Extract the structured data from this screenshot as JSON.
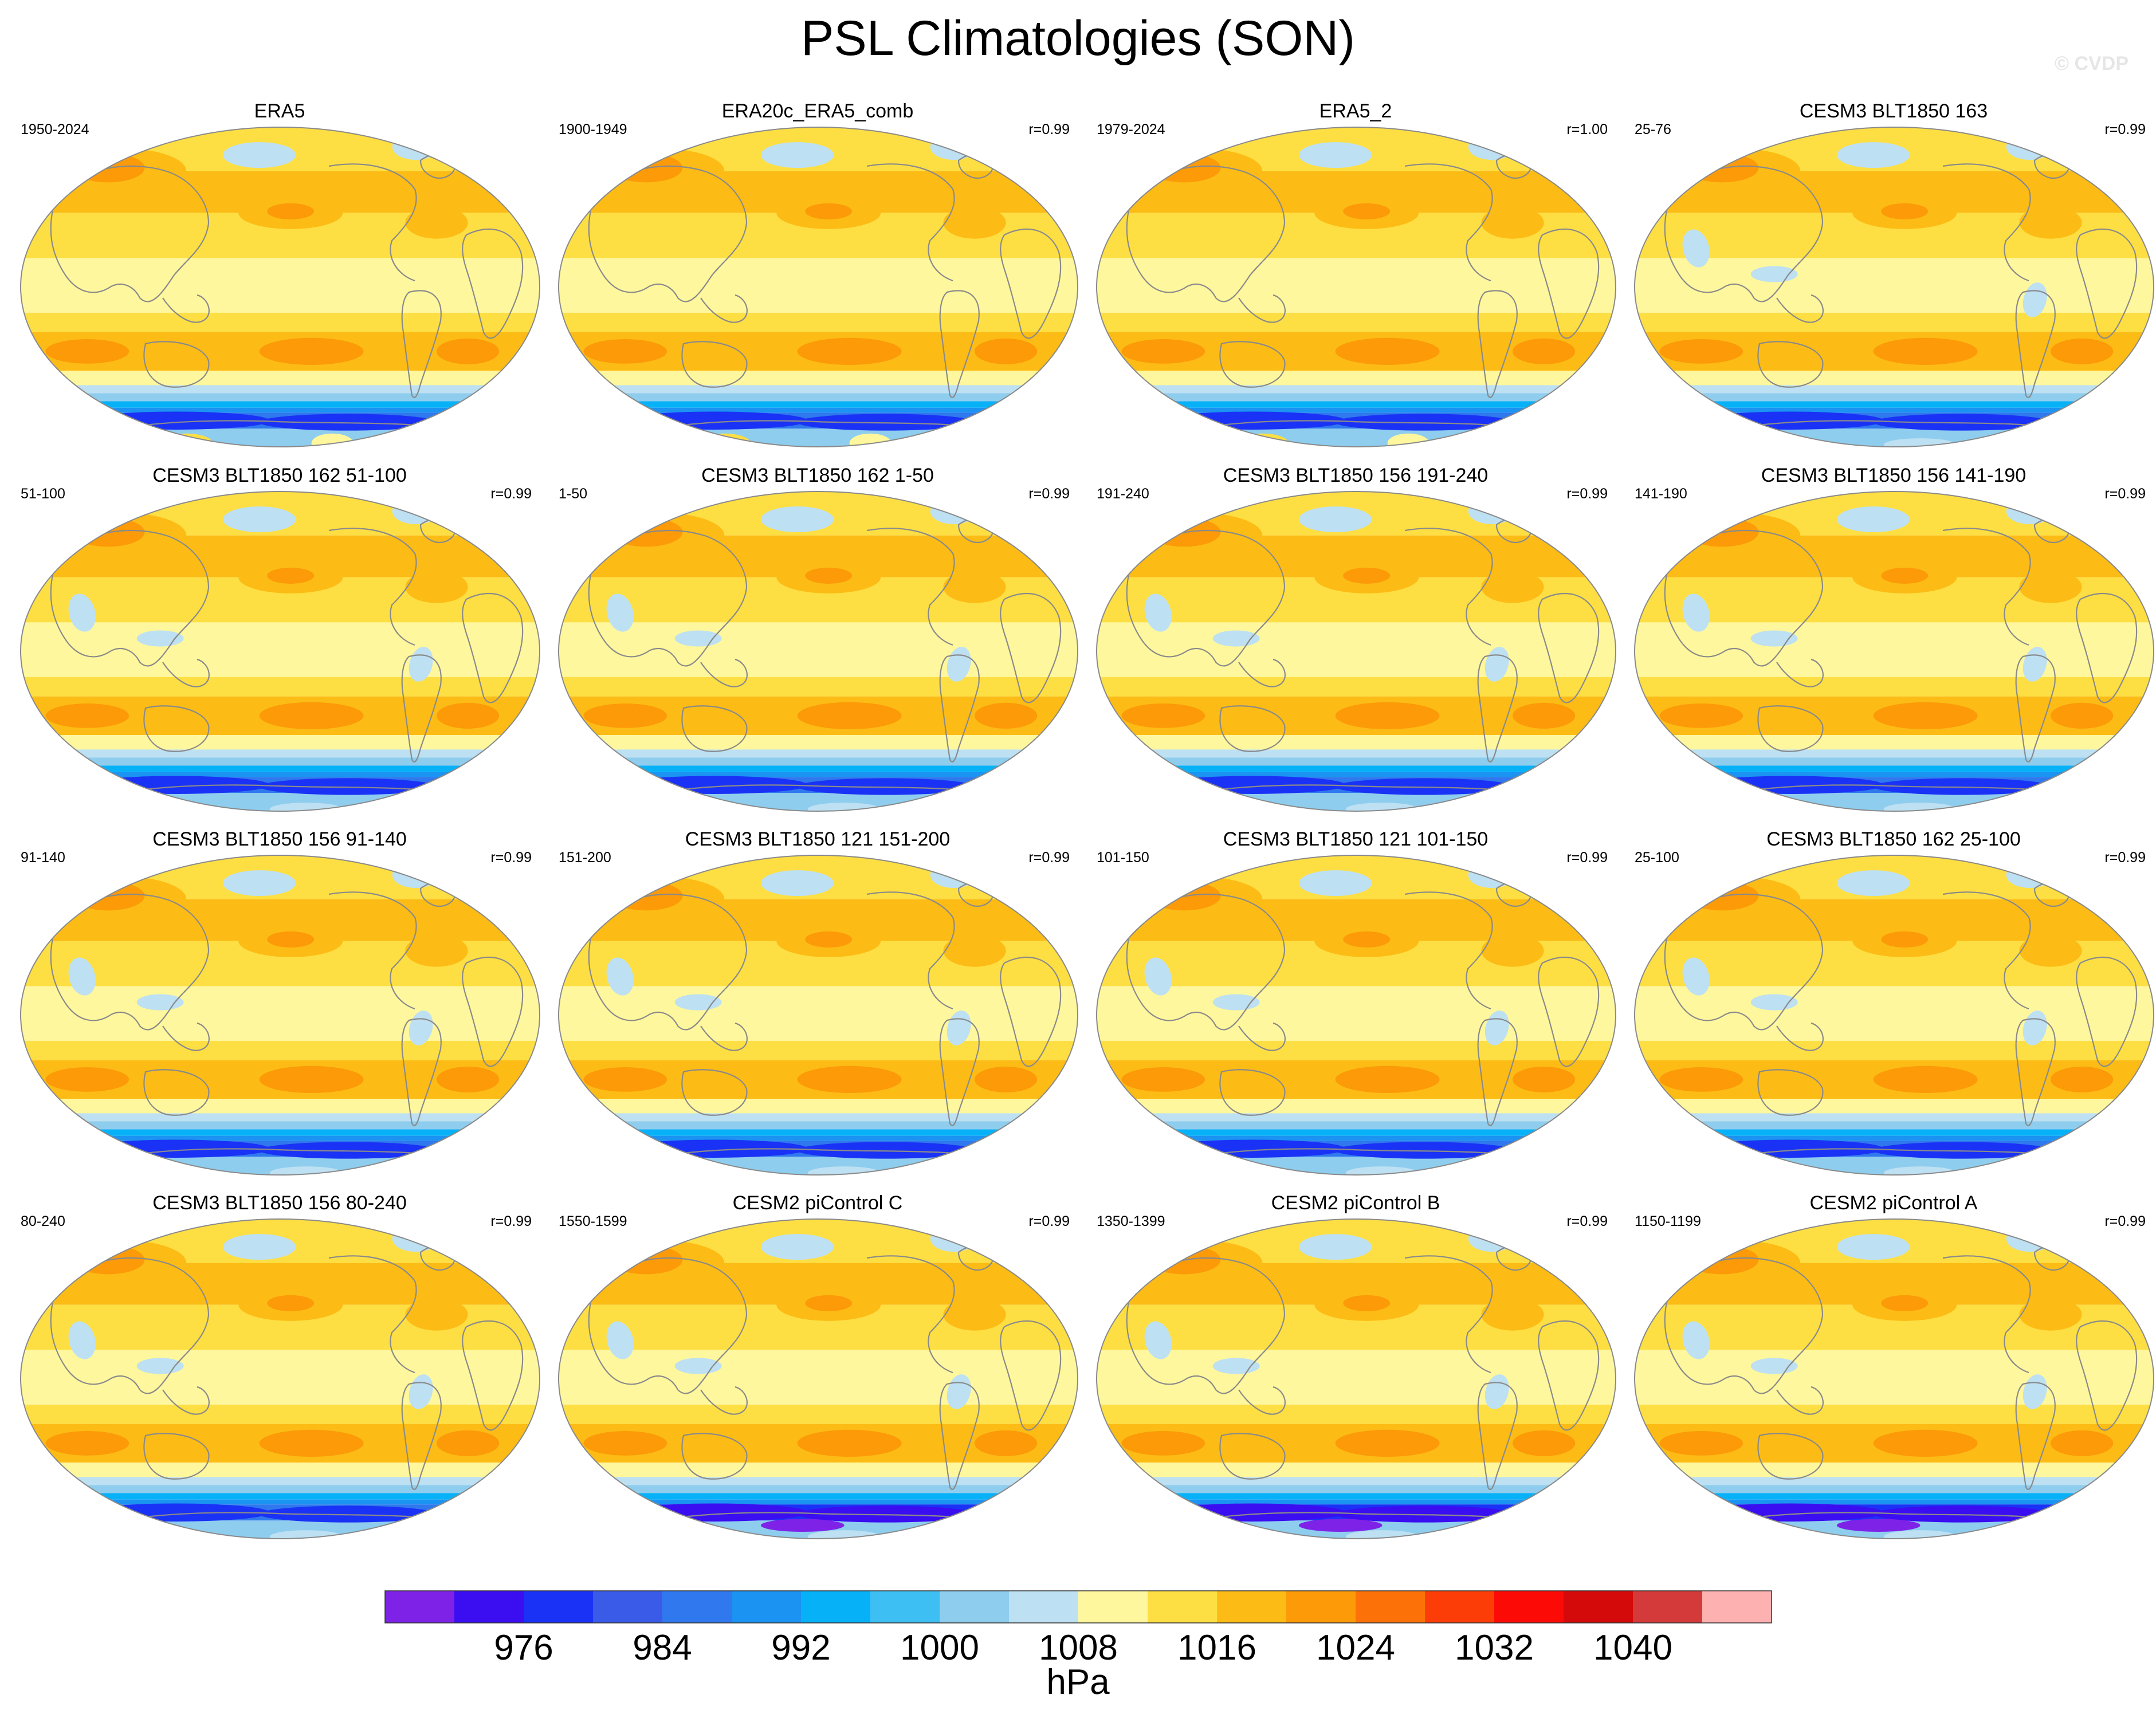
{
  "figure": {
    "title": "PSL Climatologies (SON)",
    "credit": "© CVDP",
    "unit": "hPa"
  },
  "colors": {
    "palette": [
      "#7f22e8",
      "#3a0ef0",
      "#1a32f5",
      "#3a5be8",
      "#2f78ee",
      "#1b93f2",
      "#06b1f8",
      "#3ebff3",
      "#8ecdee",
      "#bde0f3",
      "#fff79d",
      "#fedf43",
      "#fcbc15",
      "#fc9a08",
      "#fc7208",
      "#fc3d08",
      "#fc0a05",
      "#d40a0a",
      "#d43a3a",
      "#fdb1b1"
    ],
    "coastline": "#8a8a8a"
  },
  "chart_data": {
    "type": "contour-map-grid",
    "variable": "PSL",
    "season": "SON",
    "colorbar": {
      "levels": [
        972,
        976,
        980,
        984,
        988,
        992,
        996,
        1000,
        1004,
        1008,
        1012,
        1016,
        1020,
        1024,
        1028,
        1032,
        1036,
        1040,
        1044
      ],
      "tick_labels": [
        "976",
        "984",
        "992",
        "1000",
        "1008",
        "1016",
        "1024",
        "1032",
        "1040"
      ],
      "tick_values": [
        976,
        984,
        992,
        1000,
        1008,
        1016,
        1024,
        1032,
        1040
      ],
      "unit": "hPa"
    },
    "panels": [
      {
        "title": "ERA5",
        "period": "1950-2024",
        "r": "",
        "antarctic": "obs"
      },
      {
        "title": "ERA20c_ERA5_comb",
        "period": "1900-1949",
        "r": "r=0.99",
        "antarctic": "obs"
      },
      {
        "title": "ERA5_2",
        "period": "1979-2024",
        "r": "r=1.00",
        "antarctic": "obs"
      },
      {
        "title": "CESM3 BLT1850 163",
        "period": "25-76",
        "r": "r=0.99",
        "antarctic": "model"
      },
      {
        "title": "CESM3 BLT1850 162 51-100",
        "period": "51-100",
        "r": "r=0.99",
        "antarctic": "model"
      },
      {
        "title": "CESM3 BLT1850 162 1-50",
        "period": "1-50",
        "r": "r=0.99",
        "antarctic": "model"
      },
      {
        "title": "CESM3 BLT1850 156 191-240",
        "period": "191-240",
        "r": "r=0.99",
        "antarctic": "model"
      },
      {
        "title": "CESM3 BLT1850 156 141-190",
        "period": "141-190",
        "r": "r=0.99",
        "antarctic": "model"
      },
      {
        "title": "CESM3 BLT1850 156 91-140",
        "period": "91-140",
        "r": "r=0.99",
        "antarctic": "model"
      },
      {
        "title": "CESM3 BLT1850 121 151-200",
        "period": "151-200",
        "r": "r=0.99",
        "antarctic": "model"
      },
      {
        "title": "CESM3 BLT1850 121 101-150",
        "period": "101-150",
        "r": "r=0.99",
        "antarctic": "model"
      },
      {
        "title": "CESM3 BLT1850 162 25-100",
        "period": "25-100",
        "r": "r=0.99",
        "antarctic": "model"
      },
      {
        "title": "CESM3 BLT1850 156 80-240",
        "period": "80-240",
        "r": "r=0.99",
        "antarctic": "model"
      },
      {
        "title": "CESM2 piControl C",
        "period": "1550-1599",
        "r": "r=0.99",
        "antarctic": "cesm2"
      },
      {
        "title": "CESM2 piControl B",
        "period": "1350-1399",
        "r": "r=0.99",
        "antarctic": "cesm2"
      },
      {
        "title": "CESM2 piControl A",
        "period": "1150-1199",
        "r": "r=0.99",
        "antarctic": "cesm2"
      }
    ]
  }
}
